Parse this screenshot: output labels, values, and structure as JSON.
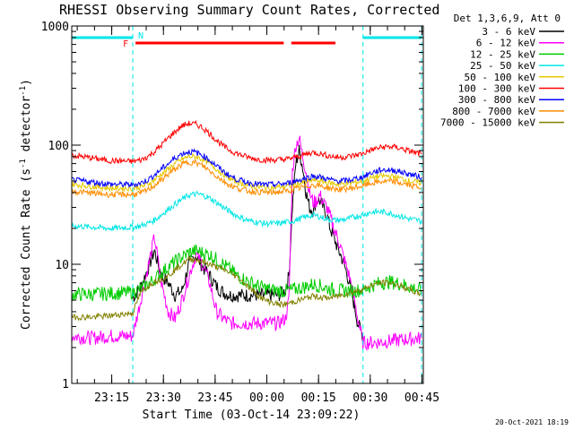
{
  "chart_data": {
    "type": "line",
    "title": "RHESSI Observing Summary Count Rates, Corrected",
    "xlabel": "Start Time (03-Oct-14 23:09:22)",
    "ylabel": "Corrected Count Rate (s",
    "ylabel_sup1": "-1",
    "ylabel_mid": " detector",
    "ylabel_sup2": "-1",
    "ylabel_end": ")",
    "yscale": "log",
    "ylim": [
      1,
      1000
    ],
    "y_ticks": [
      "1",
      "10",
      "100",
      "1000"
    ],
    "x_ticks": [
      "23:15",
      "23:30",
      "23:45",
      "00:00",
      "00:15",
      "00:30",
      "00:45"
    ],
    "xlim_minutes": [
      -6,
      96
    ],
    "grid": false,
    "legend_title": "Det 1,3,6,9, Att 0",
    "legend_position": "top-right",
    "flag_markers": [
      {
        "label": "F",
        "color": "#ff0000"
      },
      {
        "label": "N",
        "color": "#00e6e6"
      }
    ],
    "night_intervals": [
      [
        -6,
        11.7
      ],
      [
        78.5,
        95.5
      ]
    ],
    "flare_intervals": [
      [
        12.5,
        55.5
      ],
      [
        57.7,
        70.5
      ]
    ],
    "timestamp": "20-Oct-2021 18:19",
    "series": [
      {
        "name": "3 - 6 keV",
        "color": "#000000",
        "x": [
          11.7,
          14,
          16,
          18,
          20,
          22,
          24,
          26,
          28,
          30,
          32,
          34,
          36,
          38,
          40,
          42,
          44,
          46,
          48,
          50,
          52,
          54,
          56,
          57,
          58,
          59,
          60,
          61,
          62,
          63,
          64,
          65,
          66,
          67,
          68,
          69,
          70,
          71,
          72,
          73,
          74,
          75,
          76,
          77,
          78.5
        ],
        "y": [
          5.2,
          6.5,
          9,
          13,
          8,
          7,
          5.5,
          6,
          10,
          12,
          9.5,
          8,
          6.5,
          5.8,
          5.5,
          5.5,
          5.5,
          5.5,
          5.5,
          5.5,
          5.5,
          5.5,
          6,
          8,
          30,
          70,
          90,
          65,
          40,
          30,
          28,
          35,
          34,
          30,
          26,
          20,
          17,
          14,
          12,
          10,
          8,
          6,
          4.5,
          3.2,
          2.5
        ]
      },
      {
        "name": "6 - 12 keV",
        "color": "#ff00ff",
        "x": [
          -6,
          0,
          5,
          11.7,
          14,
          16,
          18,
          20,
          22,
          24,
          26,
          28,
          30,
          32,
          34,
          36,
          38,
          40,
          42,
          44,
          46,
          48,
          50,
          52,
          54,
          56,
          57,
          58,
          59,
          60,
          61,
          62,
          63,
          64,
          65,
          66,
          67,
          68,
          69,
          70,
          71,
          72,
          73,
          74,
          75,
          76,
          77,
          78.5,
          82,
          88,
          95.5
        ],
        "y": [
          2.5,
          2.4,
          2.5,
          2.5,
          5,
          9,
          17,
          7,
          4,
          3.5,
          5,
          8,
          12,
          10,
          7,
          4,
          3.5,
          3.2,
          3.2,
          3.2,
          3.2,
          3.2,
          3.2,
          3.2,
          3.2,
          3.5,
          5,
          60,
          100,
          115,
          80,
          60,
          40,
          33,
          34,
          38,
          33,
          30,
          25,
          20,
          17,
          14,
          11,
          9,
          7,
          5,
          3.5,
          2.2,
          2.2,
          2.3,
          2.4
        ]
      },
      {
        "name": "12 - 25 keV",
        "color": "#00cc00",
        "x": [
          -6,
          0,
          5,
          11.7,
          14,
          16,
          18,
          20,
          22,
          24,
          26,
          28,
          30,
          32,
          34,
          36,
          38,
          40,
          42,
          44,
          46,
          48,
          50,
          52,
          54,
          56,
          58,
          60,
          62,
          64,
          66,
          68,
          70,
          72,
          74,
          76,
          78.5,
          80,
          82,
          84,
          86,
          88,
          90,
          92,
          94,
          95.5
        ],
        "y": [
          5.6,
          5.6,
          5.7,
          5.8,
          6.2,
          6.8,
          7.5,
          8.5,
          9.5,
          10.5,
          11.5,
          12.5,
          13,
          12.5,
          12,
          11,
          10,
          9,
          8,
          7.5,
          7,
          6.6,
          6.3,
          6.1,
          6.0,
          6.0,
          6.1,
          6.3,
          6.5,
          6.8,
          6.6,
          6.3,
          6.1,
          6.0,
          6.0,
          6.0,
          6.1,
          6.4,
          6.8,
          7.0,
          7.1,
          7.0,
          6.8,
          6.5,
          6.2,
          6.0
        ]
      },
      {
        "name": "25 - 50 keV",
        "color": "#00e6e6",
        "x": [
          -6,
          0,
          5,
          11.7,
          14,
          16,
          18,
          20,
          22,
          24,
          26,
          28,
          30,
          32,
          34,
          36,
          38,
          40,
          42,
          44,
          46,
          48,
          50,
          52,
          54,
          56,
          58,
          60,
          62,
          64,
          66,
          68,
          70,
          72,
          74,
          76,
          78.5,
          80,
          82,
          84,
          86,
          88,
          90,
          92,
          94,
          95.5
        ],
        "y": [
          21,
          20.5,
          20,
          20.5,
          21,
          22,
          23.5,
          26,
          29,
          32,
          35,
          38,
          39,
          38,
          36,
          33,
          30,
          27.5,
          25.5,
          24,
          23,
          22.5,
          22,
          22,
          22,
          22.5,
          23,
          24,
          25,
          26,
          25,
          24,
          23.5,
          23.5,
          24,
          25,
          26,
          27,
          27.5,
          27.5,
          27,
          26,
          25,
          24,
          23.5,
          23
        ]
      },
      {
        "name": "50 - 100 keV",
        "color": "#e6c800",
        "x": [
          -6,
          0,
          5,
          11.7,
          14,
          16,
          18,
          20,
          22,
          24,
          26,
          28,
          30,
          32,
          34,
          36,
          38,
          40,
          42,
          44,
          46,
          48,
          50,
          52,
          54,
          56,
          58,
          60,
          62,
          64,
          66,
          68,
          70,
          72,
          74,
          76,
          78.5,
          80,
          82,
          84,
          86,
          88,
          90,
          92,
          94,
          95.5
        ],
        "y": [
          47,
          45,
          43.5,
          43.5,
          44.5,
          47,
          51,
          57,
          63,
          70,
          76,
          80,
          80,
          76,
          70,
          63,
          57,
          52,
          49,
          47,
          45.5,
          44.5,
          44,
          44,
          44.5,
          45,
          46,
          47.5,
          49,
          51,
          50,
          48.5,
          47.5,
          47,
          47.5,
          48.5,
          50,
          52,
          54,
          55,
          55,
          54,
          52,
          50,
          49,
          48
        ]
      },
      {
        "name": "100 - 300 keV",
        "color": "#ff0000",
        "x": [
          -6,
          0,
          5,
          11.7,
          14,
          16,
          18,
          20,
          22,
          24,
          26,
          28,
          30,
          32,
          34,
          36,
          38,
          40,
          42,
          44,
          46,
          48,
          50,
          52,
          54,
          56,
          58,
          60,
          62,
          64,
          66,
          68,
          70,
          72,
          74,
          76,
          78.5,
          80,
          82,
          84,
          86,
          88,
          90,
          92,
          94,
          95.5
        ],
        "y": [
          82,
          78,
          74,
          73,
          75,
          80,
          88,
          100,
          115,
          130,
          145,
          152,
          150,
          140,
          125,
          110,
          98,
          90,
          85,
          81,
          78,
          76,
          75,
          75,
          75.5,
          76,
          78,
          81,
          84,
          87,
          85,
          82,
          80,
          79,
          80,
          82,
          85,
          89,
          93,
          96,
          97,
          96,
          93,
          89,
          86,
          84
        ]
      },
      {
        "name": "300 - 800 keV",
        "color": "#0000ff",
        "x": [
          -6,
          0,
          5,
          11.7,
          14,
          16,
          18,
          20,
          22,
          24,
          26,
          28,
          30,
          32,
          34,
          36,
          38,
          40,
          42,
          44,
          46,
          48,
          50,
          52,
          54,
          56,
          58,
          60,
          62,
          64,
          66,
          68,
          70,
          72,
          74,
          76,
          78.5,
          80,
          82,
          84,
          86,
          88,
          90,
          92,
          94,
          95.5
        ],
        "y": [
          51,
          49,
          47,
          46.5,
          48,
          51,
          56,
          63,
          70,
          78,
          85,
          88,
          87,
          82,
          75,
          67,
          60,
          55,
          51.5,
          49.5,
          48,
          47,
          46.5,
          46.5,
          47,
          47.5,
          49,
          51,
          53,
          55,
          54,
          52,
          50.5,
          50,
          50.5,
          52,
          54,
          57,
          60,
          62,
          62,
          61,
          59,
          57,
          55,
          54
        ]
      },
      {
        "name": "800 - 7000 keV",
        "color": "#ff8c00",
        "x": [
          -6,
          0,
          5,
          11.7,
          14,
          16,
          18,
          20,
          22,
          24,
          26,
          28,
          30,
          32,
          34,
          36,
          38,
          40,
          42,
          44,
          46,
          48,
          50,
          52,
          54,
          56,
          58,
          60,
          62,
          64,
          66,
          68,
          70,
          72,
          74,
          76,
          78.5,
          80,
          82,
          84,
          86,
          88,
          90,
          92,
          94,
          95.5
        ],
        "y": [
          41,
          39.5,
          38.5,
          38.5,
          39.5,
          42,
          46,
          51,
          57,
          63,
          69,
          72,
          71,
          67,
          61,
          55,
          50,
          46,
          43.5,
          42,
          41,
          40.5,
          40,
          40,
          40.5,
          41,
          42,
          43.5,
          45,
          46.5,
          45.5,
          44,
          43,
          42.5,
          43,
          44,
          45.5,
          47,
          48.5,
          49.5,
          49.5,
          49,
          47.5,
          46,
          45,
          44
        ]
      },
      {
        "name": "7000 - 15000 keV",
        "color": "#808000",
        "x": [
          -6,
          0,
          5,
          11.7,
          14,
          16,
          18,
          20,
          22,
          24,
          26,
          28,
          30,
          32,
          34,
          36,
          38,
          40,
          42,
          44,
          46,
          48,
          50,
          52,
          54,
          56,
          58,
          60,
          62,
          64,
          66,
          68,
          70,
          72,
          74,
          76,
          78.5,
          80,
          82,
          84,
          86,
          88,
          90,
          92,
          94,
          95.5
        ],
        "y": [
          3.6,
          3.6,
          3.7,
          3.9,
          5.8,
          6.5,
          7.2,
          7.5,
          8,
          9,
          10,
          11,
          11,
          10.5,
          10,
          9.5,
          9,
          8.5,
          7.8,
          7,
          6.2,
          5.5,
          5,
          4.8,
          4.6,
          4.6,
          4.8,
          5,
          5.2,
          5.4,
          5.3,
          5.2,
          5.3,
          5.5,
          5.7,
          5.9,
          6.2,
          6.5,
          6.8,
          7,
          7,
          6.8,
          6.5,
          6.1,
          5.8,
          5.6
        ]
      }
    ]
  }
}
